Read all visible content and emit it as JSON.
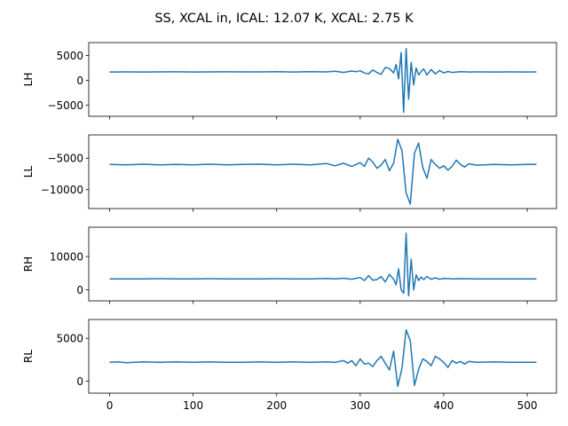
{
  "figure_title": "SS, XCAL in, ICAL: 12.07 K, XCAL: 2.75 K",
  "chart_data": [
    {
      "type": "line",
      "ylabel": "LH",
      "xlim": [
        -25,
        535
      ],
      "ylim": [
        -7200,
        7600
      ],
      "yticks": [
        {
          "value": 5000,
          "label": "5000"
        },
        {
          "value": 0,
          "label": "0"
        },
        {
          "value": -5000,
          "label": "−5000"
        }
      ],
      "color": "#1f77b4",
      "series": [
        {
          "x": [
            0,
            20,
            40,
            60,
            80,
            100,
            120,
            140,
            160,
            180,
            200,
            220,
            240,
            260,
            270,
            280,
            290,
            295,
            300,
            305,
            310,
            315,
            320,
            325,
            330,
            335,
            340,
            343,
            346,
            349,
            352,
            355,
            358,
            361,
            364,
            367,
            370,
            373,
            376,
            380,
            385,
            390,
            395,
            400,
            405,
            410,
            420,
            430,
            440,
            460,
            480,
            500,
            511
          ],
          "values": [
            1700,
            1720,
            1690,
            1710,
            1730,
            1700,
            1720,
            1740,
            1710,
            1720,
            1750,
            1700,
            1760,
            1720,
            1850,
            1600,
            1900,
            1750,
            1950,
            1500,
            1300,
            2100,
            1600,
            1200,
            2600,
            2400,
            1500,
            3200,
            300,
            5600,
            -6400,
            6400,
            -3800,
            3600,
            -900,
            2500,
            1100,
            1800,
            2300,
            1100,
            2200,
            1300,
            2000,
            1500,
            1800,
            1600,
            1750,
            1700,
            1720,
            1700,
            1720,
            1700,
            1720
          ]
        }
      ]
    },
    {
      "type": "line",
      "ylabel": "LL",
      "xlim": [
        -25,
        535
      ],
      "ylim": [
        -13000,
        -1300
      ],
      "yticks": [
        {
          "value": -5000,
          "label": "−5000"
        },
        {
          "value": -10000,
          "label": "−10000"
        }
      ],
      "color": "#1f77b4",
      "series": [
        {
          "x": [
            0,
            20,
            40,
            60,
            80,
            100,
            120,
            140,
            160,
            180,
            200,
            220,
            240,
            260,
            270,
            280,
            290,
            300,
            305,
            310,
            315,
            320,
            325,
            330,
            335,
            340,
            345,
            350,
            355,
            360,
            365,
            370,
            375,
            380,
            385,
            390,
            395,
            400,
            405,
            410,
            415,
            420,
            425,
            430,
            440,
            460,
            480,
            500,
            511
          ],
          "values": [
            -6000,
            -6050,
            -5950,
            -6050,
            -6000,
            -6050,
            -5950,
            -6050,
            -6000,
            -5950,
            -6050,
            -5950,
            -6050,
            -5850,
            -6200,
            -5800,
            -6300,
            -5700,
            -6300,
            -5000,
            -5600,
            -6600,
            -6100,
            -5200,
            -7000,
            -5800,
            -2000,
            -3800,
            -10500,
            -12300,
            -4200,
            -2600,
            -6500,
            -8200,
            -5200,
            -6000,
            -6600,
            -6200,
            -6900,
            -6300,
            -5300,
            -6000,
            -6400,
            -5900,
            -6100,
            -6000,
            -6050,
            -6000,
            -6000
          ]
        }
      ]
    },
    {
      "type": "line",
      "ylabel": "RH",
      "xlim": [
        -25,
        535
      ],
      "ylim": [
        -3300,
        18800
      ],
      "yticks": [
        {
          "value": 10000,
          "label": "10000"
        },
        {
          "value": 0,
          "label": "0"
        }
      ],
      "color": "#1f77b4",
      "series": [
        {
          "x": [
            0,
            20,
            40,
            60,
            80,
            100,
            120,
            140,
            160,
            180,
            200,
            220,
            240,
            260,
            270,
            280,
            290,
            300,
            305,
            310,
            315,
            320,
            325,
            330,
            335,
            340,
            343,
            346,
            349,
            352,
            355,
            358,
            361,
            364,
            367,
            370,
            373,
            376,
            380,
            385,
            390,
            395,
            400,
            410,
            420,
            440,
            460,
            480,
            500,
            511
          ],
          "values": [
            3300,
            3300,
            3300,
            3350,
            3300,
            3300,
            3350,
            3300,
            3300,
            3300,
            3350,
            3300,
            3300,
            3400,
            3300,
            3500,
            3200,
            3700,
            2800,
            4300,
            2900,
            3100,
            4000,
            2400,
            4600,
            3200,
            1500,
            6300,
            0,
            -1000,
            17000,
            -1800,
            9200,
            0,
            4500,
            2800,
            3800,
            3100,
            4000,
            3200,
            3600,
            3200,
            3400,
            3300,
            3350,
            3300,
            3300,
            3300,
            3300,
            3300
          ]
        }
      ]
    },
    {
      "type": "line",
      "ylabel": "RL",
      "xlim": [
        -25,
        535
      ],
      "ylim": [
        -1400,
        7200
      ],
      "yticks": [
        {
          "value": 5000,
          "label": "5000"
        },
        {
          "value": 0,
          "label": "0"
        }
      ],
      "xticks": [
        {
          "value": 0,
          "label": "0"
        },
        {
          "value": 100,
          "label": "100"
        },
        {
          "value": 200,
          "label": "200"
        },
        {
          "value": 300,
          "label": "300"
        },
        {
          "value": 400,
          "label": "400"
        },
        {
          "value": 500,
          "label": "500"
        }
      ],
      "color": "#1f77b4",
      "series": [
        {
          "x": [
            0,
            10,
            20,
            40,
            60,
            80,
            100,
            120,
            140,
            160,
            180,
            200,
            220,
            240,
            260,
            270,
            280,
            285,
            290,
            295,
            300,
            305,
            310,
            315,
            320,
            325,
            330,
            335,
            340,
            345,
            350,
            355,
            360,
            365,
            370,
            375,
            380,
            385,
            390,
            395,
            400,
            405,
            410,
            415,
            420,
            425,
            430,
            440,
            460,
            480,
            500,
            511
          ],
          "values": [
            2200,
            2250,
            2150,
            2250,
            2200,
            2250,
            2200,
            2250,
            2200,
            2200,
            2250,
            2200,
            2250,
            2200,
            2250,
            2200,
            2400,
            2100,
            2400,
            1800,
            2600,
            2000,
            2100,
            1700,
            2400,
            2900,
            2100,
            1300,
            3500,
            -600,
            1500,
            6000,
            4700,
            -500,
            1400,
            2600,
            2300,
            1800,
            2900,
            2600,
            2200,
            1600,
            2400,
            2100,
            2300,
            2000,
            2300,
            2200,
            2250,
            2200,
            2200,
            2200
          ]
        }
      ]
    }
  ]
}
